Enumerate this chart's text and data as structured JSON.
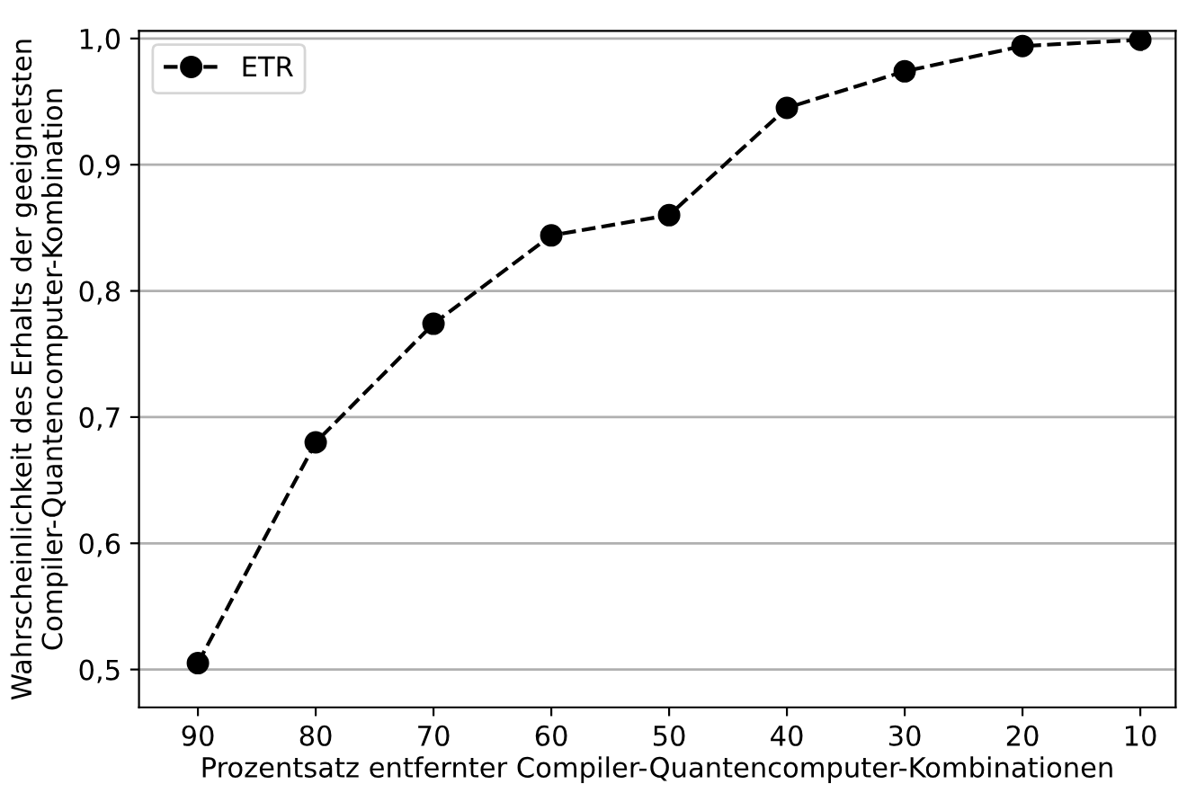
{
  "chart_data": {
    "type": "line",
    "xlabel": "Prozentsatz entfernter Compiler-Quantencomputer-Kombinationen",
    "ylabel": "Wahrscheinlichkeit des Erhalts der geeignetsten\nCompiler-Quantencomputer-Kombination",
    "x": [
      90,
      80,
      70,
      60,
      50,
      40,
      30,
      20,
      10
    ],
    "series": [
      {
        "name": "ETR",
        "color": "#000000",
        "values": [
          0.505,
          0.68,
          0.774,
          0.844,
          0.86,
          0.945,
          0.974,
          0.994,
          0.999
        ]
      }
    ],
    "xlim": [
      95,
      7
    ],
    "xticks": [
      90,
      80,
      70,
      60,
      50,
      40,
      30,
      20,
      10
    ],
    "ylim": [
      0.47,
      1.006
    ],
    "yticks": [
      {
        "value": 0.5,
        "label": "0,5"
      },
      {
        "value": 0.6,
        "label": "0,6"
      },
      {
        "value": 0.7,
        "label": "0,7"
      },
      {
        "value": 0.8,
        "label": "0,8"
      },
      {
        "value": 0.9,
        "label": "0,9"
      },
      {
        "value": 1.0,
        "label": "1,0"
      }
    ],
    "grid": "y",
    "legend": "top left",
    "marker": "circle",
    "line_style": "dashed"
  }
}
